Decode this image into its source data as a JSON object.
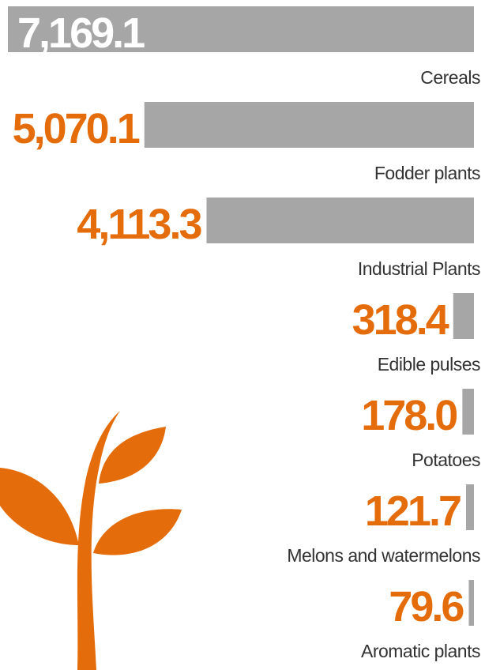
{
  "chart_data": {
    "type": "bar",
    "orientation": "horizontal",
    "categories": [
      "Cereals",
      "Fodder plants",
      "Industrial Plants",
      "Edible pulses",
      "Potatoes",
      "Melons and watermelons",
      "Aromatic plants"
    ],
    "values": [
      7169.1,
      5070.1,
      4113.3,
      318.4,
      178.0,
      121.7,
      79.6
    ],
    "value_labels": [
      "7,169.1",
      "5,070.1",
      "4,113.3",
      "318.4",
      "178.0",
      "121.7",
      "79.6"
    ],
    "color": "#a6a6a6",
    "label_color": "#e46c0a"
  }
}
